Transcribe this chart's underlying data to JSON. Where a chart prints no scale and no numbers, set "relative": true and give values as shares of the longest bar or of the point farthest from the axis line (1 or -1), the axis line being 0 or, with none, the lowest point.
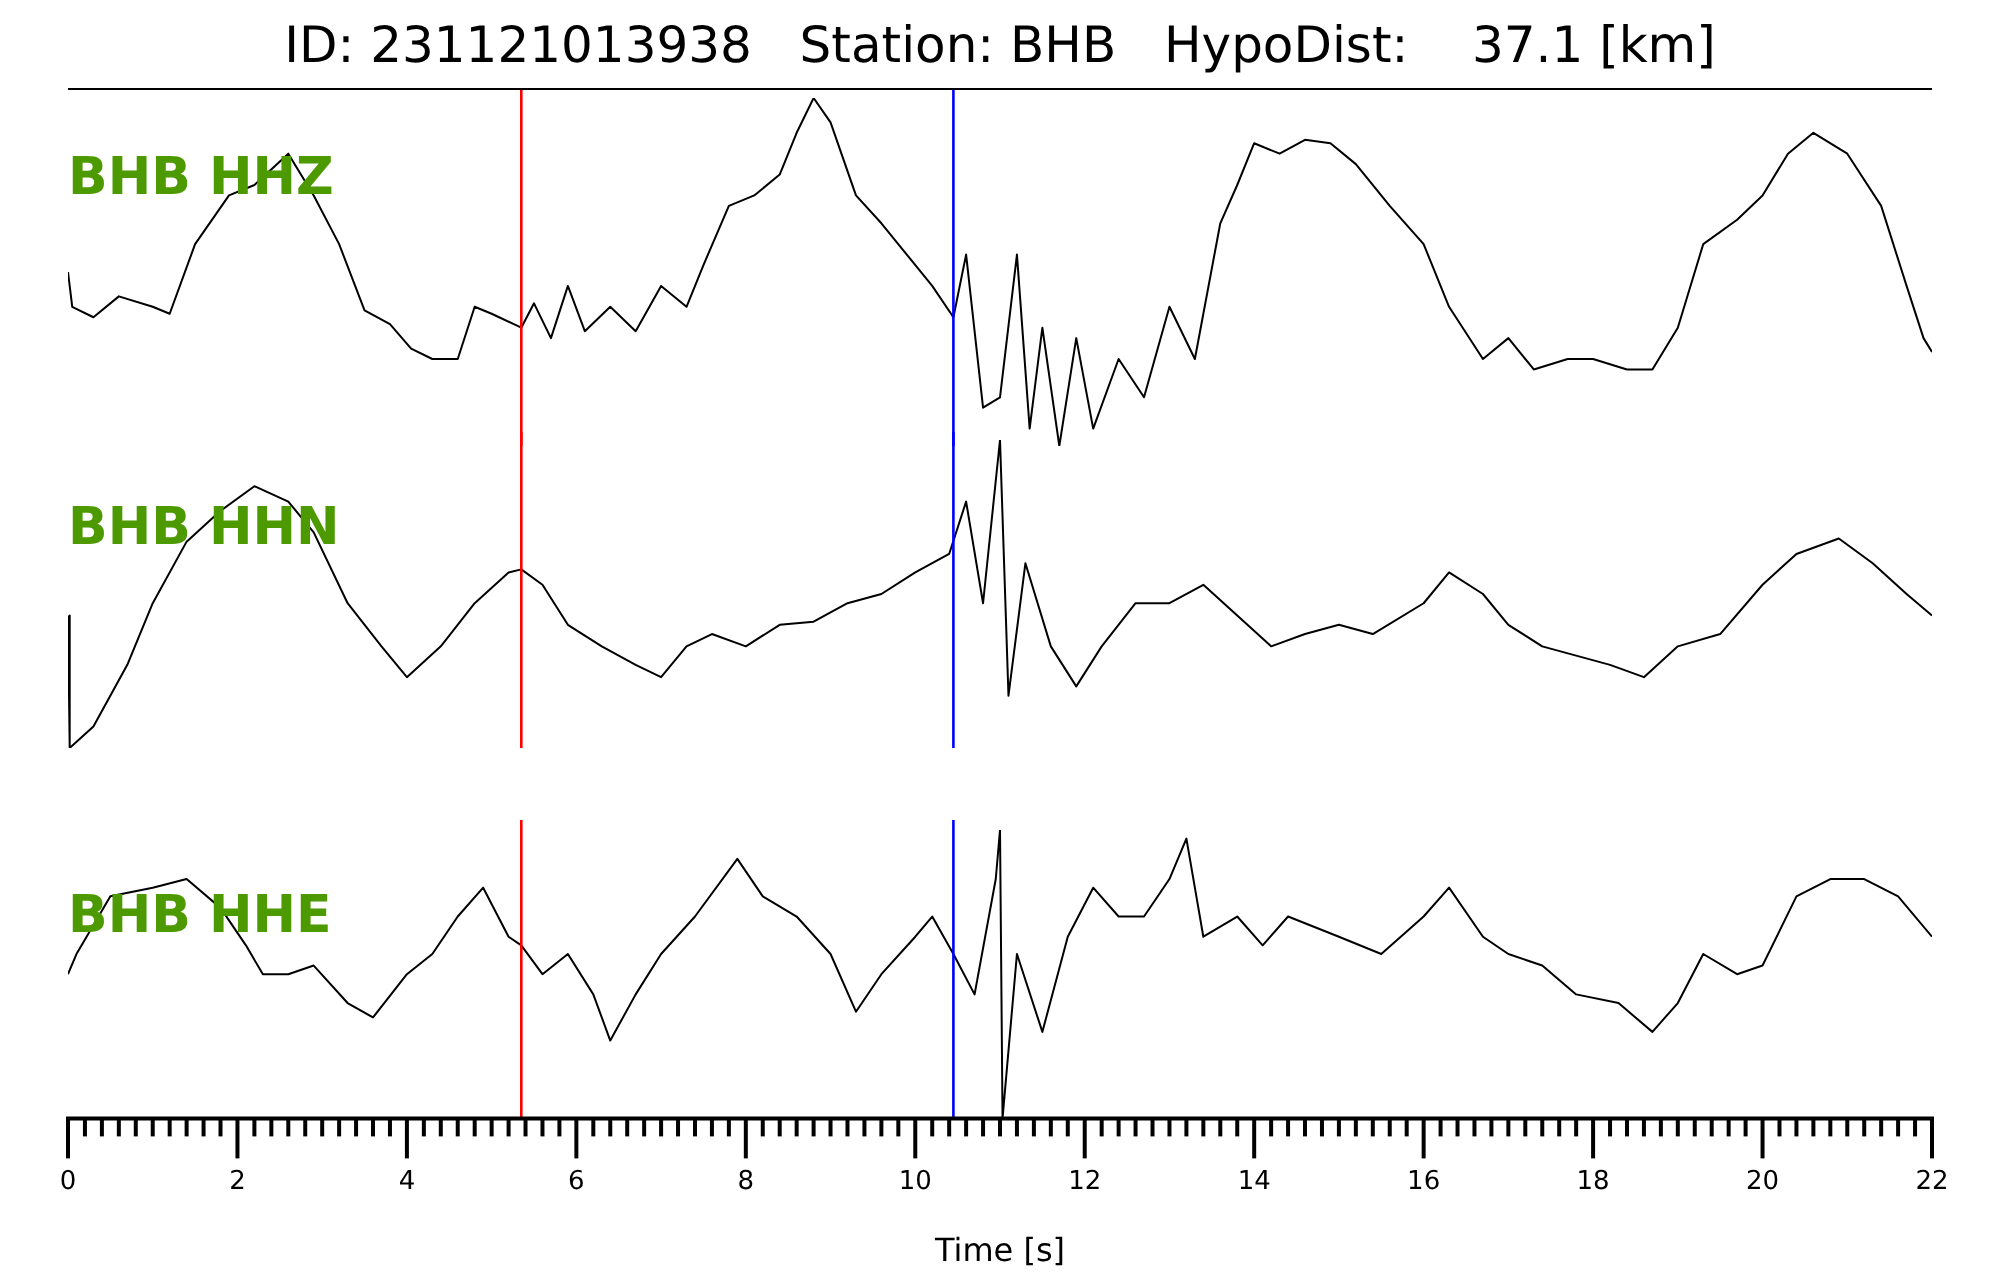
{
  "chart_data": [
    {
      "type": "line",
      "title": "ID: 231121013938   Station: BHB   HypoDist:    37.1 [km]",
      "relative": true,
      "tick_labels": false,
      "xlim": [
        0,
        22
      ],
      "series": [
        {
          "name": "BHB HHZ",
          "color": "#000000",
          "x": [
            0,
            0.05,
            0.3,
            0.6,
            1.0,
            1.2,
            1.5,
            1.9,
            2.2,
            2.6,
            2.9,
            3.2,
            3.5,
            3.8,
            4.05,
            4.3,
            4.6,
            4.8,
            5.0,
            5.35,
            5.5,
            5.7,
            5.9,
            6.1,
            6.4,
            6.7,
            7.0,
            7.3,
            7.5,
            7.8,
            8.1,
            8.4,
            8.6,
            8.8,
            9.0,
            9.3,
            9.6,
            9.9,
            10.2,
            10.45,
            10.6,
            10.8,
            11.0,
            11.2,
            11.35,
            11.5,
            11.7,
            11.9,
            12.1,
            12.4,
            12.7,
            13.0,
            13.3,
            13.6,
            13.8,
            14.0,
            14.3,
            14.6,
            14.9,
            15.2,
            15.6,
            16.0,
            16.3,
            16.7,
            17.0,
            17.3,
            17.7,
            18.0,
            18.4,
            18.7,
            19.0,
            19.3,
            19.7,
            20.0,
            20.3,
            20.6,
            21.0,
            21.4,
            21.7,
            21.9,
            22
          ],
          "values": [
            0.5,
            0.4,
            0.37,
            0.43,
            0.4,
            0.38,
            0.58,
            0.72,
            0.75,
            0.84,
            0.72,
            0.58,
            0.39,
            0.35,
            0.28,
            0.25,
            0.25,
            0.4,
            0.38,
            0.34,
            0.41,
            0.31,
            0.46,
            0.33,
            0.4,
            0.33,
            0.46,
            0.4,
            0.52,
            0.69,
            0.72,
            0.78,
            0.9,
            1,
            0.93,
            0.72,
            0.64,
            0.55,
            0.46,
            0.37,
            0.55,
            0.11,
            0.14,
            0.55,
            0.05,
            0.34,
            0,
            0.31,
            0.05,
            0.25,
            0.14,
            0.4,
            0.25,
            0.64,
            0.75,
            0.87,
            0.84,
            0.88,
            0.87,
            0.81,
            0.69,
            0.58,
            0.4,
            0.25,
            0.31,
            0.22,
            0.25,
            0.25,
            0.22,
            0.22,
            0.34,
            0.58,
            0.65,
            0.72,
            0.84,
            0.9,
            0.84,
            0.69,
            0.46,
            0.31,
            0.27
          ]
        }
      ],
      "ref_lines": [
        {
          "axis": "x",
          "value": 5.35,
          "color": "#ff0000"
        },
        {
          "axis": "x",
          "value": 10.45,
          "color": "#0000ff"
        }
      ]
    },
    {
      "type": "line",
      "relative": true,
      "tick_labels": false,
      "xlim": [
        0,
        22
      ],
      "series": [
        {
          "name": "BHB HHN",
          "color": "#000000",
          "x": [
            0,
            0.02,
            0.3,
            0.7,
            1.0,
            1.4,
            1.8,
            2.2,
            2.6,
            2.9,
            3.3,
            3.7,
            4.0,
            4.4,
            4.8,
            5.2,
            5.35,
            5.6,
            5.9,
            6.3,
            6.7,
            7.0,
            7.3,
            7.6,
            8.0,
            8.4,
            8.8,
            9.2,
            9.6,
            10.0,
            10.4,
            10.6,
            10.8,
            11.0,
            11.1,
            11.3,
            11.6,
            11.9,
            12.2,
            12.6,
            13.0,
            13.4,
            13.8,
            14.2,
            14.6,
            15.0,
            15.4,
            16.0,
            16.3,
            16.7,
            17.0,
            17.4,
            17.8,
            18.2,
            18.6,
            19.0,
            19.5,
            20.0,
            20.4,
            20.9,
            21.3,
            21.7,
            22
          ],
          "values": [
            0.43,
            0,
            0.07,
            0.27,
            0.47,
            0.67,
            0.77,
            0.85,
            0.8,
            0.7,
            0.47,
            0.33,
            0.23,
            0.33,
            0.47,
            0.57,
            0.58,
            0.53,
            0.4,
            0.33,
            0.27,
            0.23,
            0.33,
            0.37,
            0.33,
            0.4,
            0.41,
            0.47,
            0.5,
            0.57,
            0.63,
            0.8,
            0.47,
            1,
            0.17,
            0.6,
            0.33,
            0.2,
            0.33,
            0.47,
            0.47,
            0.53,
            0.43,
            0.33,
            0.37,
            0.4,
            0.37,
            0.47,
            0.57,
            0.5,
            0.4,
            0.33,
            0.3,
            0.27,
            0.23,
            0.33,
            0.37,
            0.53,
            0.63,
            0.68,
            0.6,
            0.5,
            0.43
          ]
        }
      ],
      "ref_lines": [
        {
          "axis": "x",
          "value": 5.35,
          "color": "#ff0000"
        },
        {
          "axis": "x",
          "value": 10.45,
          "color": "#0000ff"
        }
      ]
    },
    {
      "type": "line",
      "relative": true,
      "tick_labels": "x",
      "xlabel": "Time [s]",
      "xlim": [
        0,
        22
      ],
      "xticks": [
        0,
        {
          "value": 0.2,
          "label": null
        },
        {
          "value": 0.4,
          "label": null
        },
        {
          "value": 0.6,
          "label": null
        },
        {
          "value": 0.8,
          "label": null
        },
        {
          "value": 1,
          "label": null
        },
        {
          "value": 1.2,
          "label": null
        },
        {
          "value": 1.4,
          "label": null
        },
        {
          "value": 1.6,
          "label": null
        },
        {
          "value": 1.8,
          "label": null
        },
        2,
        {
          "value": 2.2,
          "label": null
        },
        {
          "value": 2.4,
          "label": null
        },
        {
          "value": 2.6,
          "label": null
        },
        {
          "value": 2.8,
          "label": null
        },
        {
          "value": 3,
          "label": null
        },
        {
          "value": 3.2,
          "label": null
        },
        {
          "value": 3.4,
          "label": null
        },
        {
          "value": 3.6,
          "label": null
        },
        {
          "value": 3.8,
          "label": null
        },
        4,
        {
          "value": 4.2,
          "label": null
        },
        {
          "value": 4.4,
          "label": null
        },
        {
          "value": 4.6,
          "label": null
        },
        {
          "value": 4.8,
          "label": null
        },
        {
          "value": 5,
          "label": null
        },
        {
          "value": 5.2,
          "label": null
        },
        {
          "value": 5.4,
          "label": null
        },
        {
          "value": 5.6,
          "label": null
        },
        {
          "value": 5.8,
          "label": null
        },
        6,
        {
          "value": 6.2,
          "label": null
        },
        {
          "value": 6.4,
          "label": null
        },
        {
          "value": 6.6,
          "label": null
        },
        {
          "value": 6.8,
          "label": null
        },
        {
          "value": 7,
          "label": null
        },
        {
          "value": 7.2,
          "label": null
        },
        {
          "value": 7.4,
          "label": null
        },
        {
          "value": 7.6,
          "label": null
        },
        {
          "value": 7.8,
          "label": null
        },
        8,
        {
          "value": 8.2,
          "label": null
        },
        {
          "value": 8.4,
          "label": null
        },
        {
          "value": 8.6,
          "label": null
        },
        {
          "value": 8.8,
          "label": null
        },
        {
          "value": 9,
          "label": null
        },
        {
          "value": 9.2,
          "label": null
        },
        {
          "value": 9.4,
          "label": null
        },
        {
          "value": 9.6,
          "label": null
        },
        {
          "value": 9.8,
          "label": null
        },
        10,
        {
          "value": 10.2,
          "label": null
        },
        {
          "value": 10.4,
          "label": null
        },
        {
          "value": 10.6,
          "label": null
        },
        {
          "value": 10.8,
          "label": null
        },
        {
          "value": 11,
          "label": null
        },
        {
          "value": 11.2,
          "label": null
        },
        {
          "value": 11.4,
          "label": null
        },
        {
          "value": 11.6,
          "label": null
        },
        {
          "value": 11.8,
          "label": null
        },
        12,
        {
          "value": 12.2,
          "label": null
        },
        {
          "value": 12.4,
          "label": null
        },
        {
          "value": 12.6,
          "label": null
        },
        {
          "value": 12.8,
          "label": null
        },
        {
          "value": 13,
          "label": null
        },
        {
          "value": 13.2,
          "label": null
        },
        {
          "value": 13.4,
          "label": null
        },
        {
          "value": 13.6,
          "label": null
        },
        {
          "value": 13.8,
          "label": null
        },
        14,
        {
          "value": 14.2,
          "label": null
        },
        {
          "value": 14.4,
          "label": null
        },
        {
          "value": 14.6,
          "label": null
        },
        {
          "value": 14.8,
          "label": null
        },
        {
          "value": 15,
          "label": null
        },
        {
          "value": 15.2,
          "label": null
        },
        {
          "value": 15.4,
          "label": null
        },
        {
          "value": 15.6,
          "label": null
        },
        {
          "value": 15.8,
          "label": null
        },
        16,
        {
          "value": 16.2,
          "label": null
        },
        {
          "value": 16.4,
          "label": null
        },
        {
          "value": 16.6,
          "label": null
        },
        {
          "value": 16.8,
          "label": null
        },
        {
          "value": 17,
          "label": null
        },
        {
          "value": 17.2,
          "label": null
        },
        {
          "value": 17.4,
          "label": null
        },
        {
          "value": 17.6,
          "label": null
        },
        {
          "value": 17.8,
          "label": null
        },
        18,
        {
          "value": 18.2,
          "label": null
        },
        {
          "value": 18.4,
          "label": null
        },
        {
          "value": 18.6,
          "label": null
        },
        {
          "value": 18.8,
          "label": null
        },
        {
          "value": 19,
          "label": null
        },
        {
          "value": 19.2,
          "label": null
        },
        {
          "value": 19.4,
          "label": null
        },
        {
          "value": 19.6,
          "label": null
        },
        {
          "value": 19.8,
          "label": null
        },
        20,
        {
          "value": 20.2,
          "label": null
        },
        {
          "value": 20.4,
          "label": null
        },
        {
          "value": 20.6,
          "label": null
        },
        {
          "value": 20.8,
          "label": null
        },
        {
          "value": 21,
          "label": null
        },
        {
          "value": 21.2,
          "label": null
        },
        {
          "value": 21.4,
          "label": null
        },
        {
          "value": 21.6,
          "label": null
        },
        {
          "value": 21.8,
          "label": null
        },
        22
      ],
      "series": [
        {
          "name": "BHB HHE",
          "color": "#000000",
          "x": [
            0,
            0.1,
            0.5,
            1.0,
            1.4,
            1.8,
            2.1,
            2.3,
            2.6,
            2.9,
            3.3,
            3.6,
            4.0,
            4.3,
            4.6,
            4.9,
            5.2,
            5.35,
            5.6,
            5.9,
            6.2,
            6.4,
            6.7,
            7.0,
            7.4,
            7.9,
            8.2,
            8.6,
            9.0,
            9.3,
            9.6,
            10.0,
            10.2,
            10.45,
            10.7,
            10.95,
            11.0,
            11.03,
            11.2,
            11.5,
            11.8,
            12.1,
            12.4,
            12.7,
            13.0,
            13.2,
            13.4,
            13.8,
            14.1,
            14.4,
            15.0,
            15.5,
            16.0,
            16.3,
            16.7,
            17.0,
            17.4,
            17.8,
            18.3,
            18.7,
            19.0,
            19.3,
            19.7,
            20.0,
            20.4,
            20.8,
            21.2,
            21.6,
            22
          ],
          "values": [
            0.5,
            0.57,
            0.77,
            0.8,
            0.83,
            0.73,
            0.6,
            0.5,
            0.5,
            0.53,
            0.4,
            0.35,
            0.5,
            0.57,
            0.7,
            0.8,
            0.63,
            0.6,
            0.5,
            0.57,
            0.43,
            0.27,
            0.43,
            0.57,
            0.7,
            0.9,
            0.77,
            0.7,
            0.57,
            0.37,
            0.5,
            0.63,
            0.7,
            0.57,
            0.43,
            0.83,
            1,
            0,
            0.57,
            0.3,
            0.63,
            0.8,
            0.7,
            0.7,
            0.83,
            0.97,
            0.63,
            0.7,
            0.6,
            0.7,
            0.63,
            0.57,
            0.7,
            0.8,
            0.63,
            0.57,
            0.53,
            0.43,
            0.4,
            0.3,
            0.4,
            0.57,
            0.5,
            0.53,
            0.77,
            0.83,
            0.83,
            0.77,
            0.63
          ]
        }
      ],
      "ref_lines": [
        {
          "axis": "x",
          "value": 5.35,
          "color": "#ff0000"
        },
        {
          "axis": "x",
          "value": 10.45,
          "color": "#0000ff"
        }
      ]
    }
  ]
}
